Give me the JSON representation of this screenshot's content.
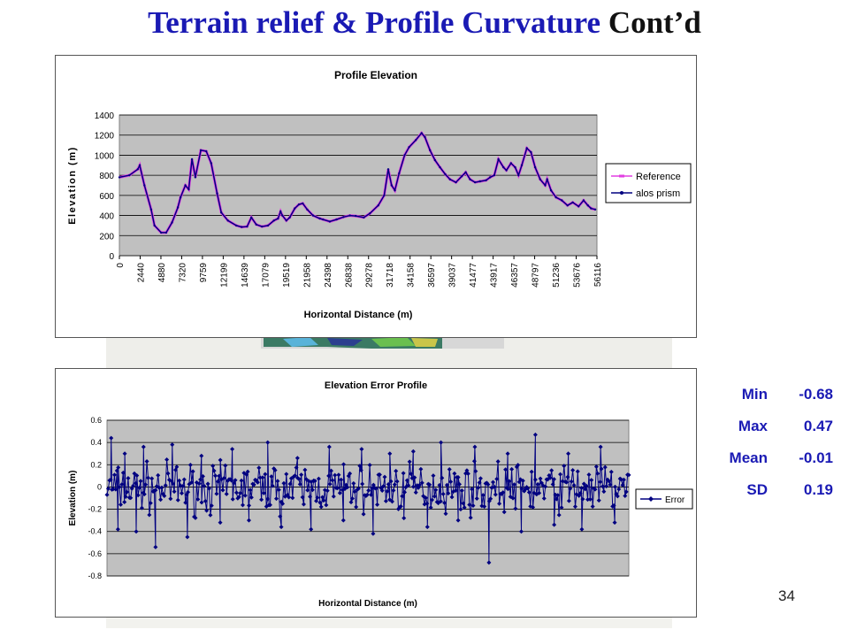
{
  "slide": {
    "title_main": "Terrain relief & Profile Curvature",
    "title_suffix": "Cont’d",
    "page_number": "34",
    "accent_color": "#1a1ab4"
  },
  "stats": [
    {
      "label": "Min",
      "value": "-0.68"
    },
    {
      "label": "Max",
      "value": "0.47"
    },
    {
      "label": "Mean",
      "value": "-0.01"
    },
    {
      "label": "SD",
      "value": "0.19"
    }
  ],
  "chart_data": [
    {
      "type": "line",
      "title": "Profile   Elevation",
      "xlabel": "Horizontal Distance (m)",
      "ylabel": "Elevation (m)",
      "ylim": [
        0,
        1400
      ],
      "yticks": [
        0,
        200,
        400,
        600,
        800,
        1000,
        1200,
        1400
      ],
      "xlim": [
        0,
        57200
      ],
      "xticks": [
        "0",
        "2440",
        "4880",
        "7320",
        "9759",
        "12199",
        "14639",
        "17079",
        "19519",
        "21958",
        "24398",
        "26838",
        "29278",
        "31718",
        "34158",
        "36597",
        "39037",
        "41477",
        "43917",
        "46357",
        "48797",
        "51236",
        "53676",
        "56116"
      ],
      "grid": true,
      "legend": "right",
      "plot_bg": "#c0c0c0",
      "series": [
        {
          "name": "Reference",
          "color": "#e23ee2",
          "marker": "dash"
        },
        {
          "name": "alos prism",
          "color": "#000080",
          "marker": "dot"
        }
      ],
      "x": [
        0,
        1200,
        2200,
        2440,
        3000,
        3800,
        4200,
        5000,
        5600,
        6300,
        7000,
        7320,
        7900,
        8300,
        8700,
        9100,
        9759,
        10400,
        11000,
        11700,
        12199,
        13000,
        14000,
        14639,
        15300,
        15800,
        16400,
        17079,
        17800,
        18500,
        19000,
        19300,
        19519,
        20000,
        20400,
        21000,
        21500,
        21958,
        22500,
        23200,
        24000,
        24398,
        25200,
        26000,
        26838,
        27600,
        28300,
        29278,
        30000,
        31000,
        31718,
        32200,
        32600,
        33000,
        33500,
        34158,
        34700,
        35500,
        36200,
        36597,
        37200,
        37800,
        38400,
        39037,
        39600,
        40300,
        41000,
        41477,
        42000,
        42600,
        43200,
        43917,
        44400,
        44900,
        45400,
        46000,
        46357,
        46900,
        47400,
        47800,
        48200,
        48797,
        49300,
        49800,
        50400,
        51000,
        51236,
        51700,
        52300,
        53000,
        53676,
        54300,
        55000,
        55600,
        56116,
        56500,
        57000
      ],
      "values": [
        780,
        800,
        860,
        900,
        700,
        460,
        300,
        230,
        230,
        330,
        480,
        580,
        700,
        660,
        960,
        780,
        1050,
        1040,
        920,
        620,
        430,
        350,
        300,
        285,
        290,
        380,
        310,
        290,
        300,
        350,
        370,
        440,
        400,
        350,
        380,
        470,
        510,
        520,
        460,
        400,
        370,
        360,
        340,
        360,
        385,
        400,
        395,
        380,
        420,
        500,
        600,
        860,
        700,
        650,
        820,
        1000,
        1080,
        1150,
        1220,
        1180,
        1050,
        950,
        880,
        810,
        760,
        730,
        790,
        830,
        760,
        730,
        740,
        750,
        780,
        800,
        960,
        880,
        850,
        920,
        880,
        800,
        900,
        1070,
        1030,
        880,
        760,
        700,
        760,
        650,
        580,
        550,
        500,
        530,
        490,
        550,
        500,
        470,
        460
      ]
    },
    {
      "type": "line",
      "title": "Elevation Error Profile",
      "xlabel": "Horizontal Distance (m)",
      "ylabel": "Elevation (m)",
      "ylim": [
        -0.8,
        0.6
      ],
      "yticks": [
        -0.8,
        -0.6,
        -0.4,
        -0.2,
        0,
        0.2,
        0.4,
        0.6
      ],
      "grid": true,
      "legend": "right",
      "plot_bg": "#c0c0c0",
      "series": [
        {
          "name": "Error",
          "color": "#000080",
          "marker": "diamond"
        }
      ],
      "summary": {
        "min": -0.68,
        "max": 0.47,
        "mean": -0.01,
        "sd": 0.19
      },
      "spikes_x": [
        0.8,
        2.1,
        3.4,
        5.6,
        7.0,
        9.3,
        12.5,
        15.4,
        18.1,
        21.7,
        24.0,
        27.2,
        30.8,
        33.4,
        36.5,
        39.1,
        42.6,
        45.3,
        48.8,
        51.0,
        54.2,
        56.9,
        58.7,
        61.4,
        64.0,
        67.3,
        70.5,
        73.2,
        76.8,
        79.4,
        82.1,
        85.7,
        88.4,
        91.0,
        94.6,
        97.3
      ],
      "spikes_y": [
        0.44,
        -0.38,
        0.3,
        -0.4,
        0.36,
        -0.54,
        0.38,
        -0.45,
        0.28,
        -0.32,
        0.34,
        -0.3,
        0.4,
        -0.36,
        0.26,
        -0.38,
        0.36,
        -0.3,
        0.34,
        -0.42,
        0.3,
        -0.28,
        0.32,
        -0.36,
        0.4,
        -0.3,
        0.36,
        -0.68,
        0.3,
        -0.4,
        0.47,
        -0.34,
        0.3,
        -0.38,
        0.36,
        -0.32
      ]
    }
  ]
}
